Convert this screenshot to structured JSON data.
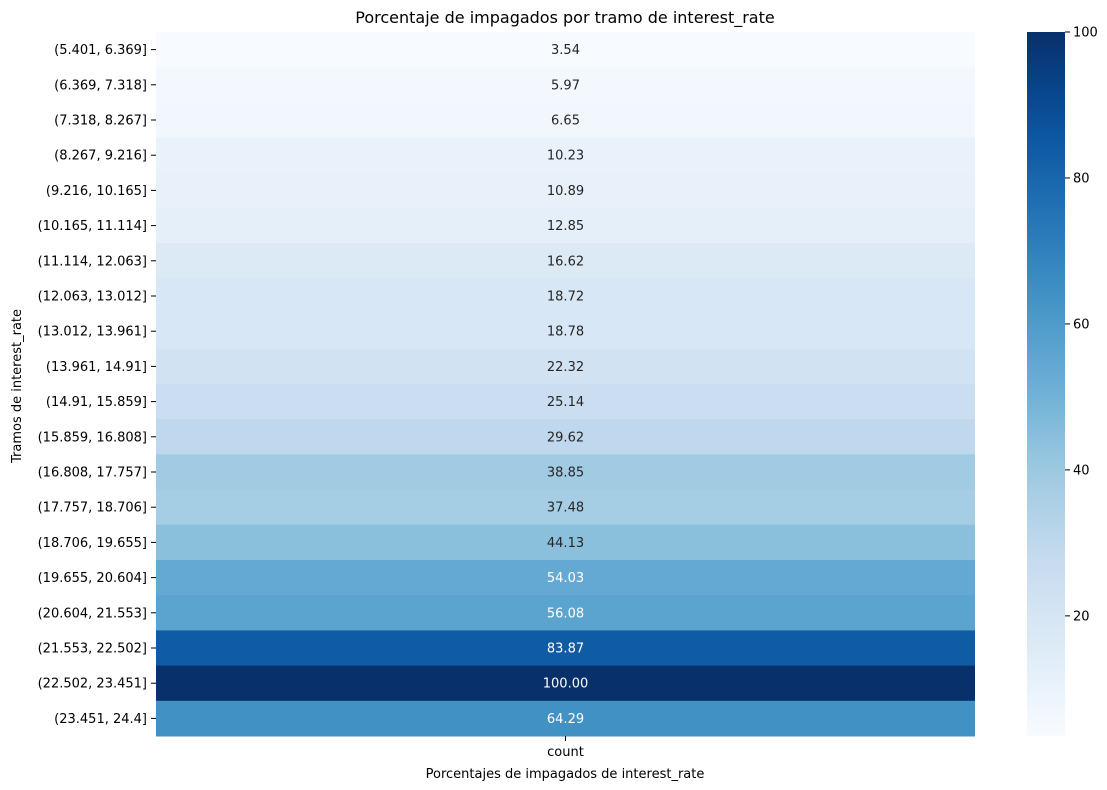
{
  "chart_data": {
    "type": "heatmap",
    "title": "Porcentaje de impagados por tramo de interest_rate",
    "xlabel": "Porcentajes de impagados de interest_rate",
    "ylabel": "Tramos de interest_rate",
    "columns": [
      "count"
    ],
    "rows": [
      "(5.401, 6.369]",
      "(6.369, 7.318]",
      "(7.318, 8.267]",
      "(8.267, 9.216]",
      "(9.216, 10.165]",
      "(10.165, 11.114]",
      "(11.114, 12.063]",
      "(12.063, 13.012]",
      "(13.012, 13.961]",
      "(13.961, 14.91]",
      "(14.91, 15.859]",
      "(15.859, 16.808]",
      "(16.808, 17.757]",
      "(17.757, 18.706]",
      "(18.706, 19.655]",
      "(19.655, 20.604]",
      "(20.604, 21.553]",
      "(21.553, 22.502]",
      "(22.502, 23.451]",
      "(23.451, 24.4]"
    ],
    "values": [
      3.54,
      5.97,
      6.65,
      10.23,
      10.89,
      12.85,
      16.62,
      18.72,
      18.78,
      22.32,
      25.14,
      29.62,
      38.85,
      37.48,
      44.13,
      54.03,
      56.08,
      83.87,
      100.0,
      64.29
    ],
    "value_format": "0.00",
    "colormap": "Blues",
    "colorbar": {
      "min": 3.54,
      "max": 100,
      "ticks": [
        20,
        40,
        60,
        80,
        100
      ]
    }
  }
}
